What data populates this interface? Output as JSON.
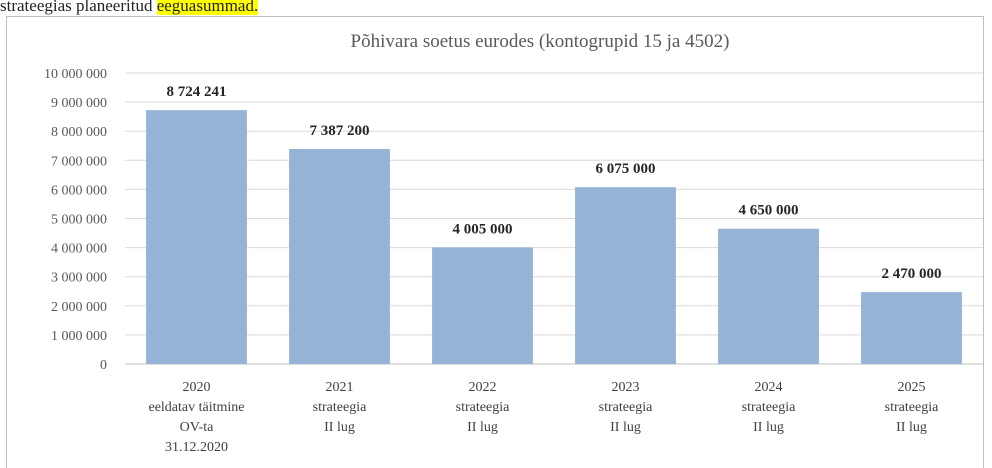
{
  "page": {
    "heading_text": "strateegias planeeritud ",
    "heading_highlight": "eeguasummad."
  },
  "chart_data": {
    "type": "bar",
    "title": "Põhivara soetus eurodes (kontogrupid 15 ja 4502)",
    "xlabel": "",
    "ylabel": "",
    "ylim": [
      0,
      10000000
    ],
    "ytick_step": 1000000,
    "ytick_labels": [
      "0",
      "1 000 000",
      "2 000 000",
      "3 000 000",
      "4 000 000",
      "5 000 000",
      "6 000 000",
      "7 000 000",
      "8 000 000",
      "9 000 000",
      "10 000 000"
    ],
    "categories": [
      [
        "2020",
        "eeldatav täitmine",
        "OV-ta",
        "31.12.2020"
      ],
      [
        "2021",
        "strateegia",
        "II lug"
      ],
      [
        "2022",
        "strateegia",
        "II lug"
      ],
      [
        "2023",
        "strateegia",
        "II lug"
      ],
      [
        "2024",
        "strateegia",
        "II lug"
      ],
      [
        "2025",
        "strateegia",
        "II lug"
      ]
    ],
    "values": [
      8724241,
      7387200,
      4005000,
      6075000,
      4650000,
      2470000
    ],
    "value_labels": [
      "8 724 241",
      "7 387 200",
      "4 005 000",
      "6 075 000",
      "4 650 000",
      "2 470 000"
    ],
    "grid": true,
    "legend": "none",
    "bar_color": "#95b3d7",
    "grid_color": "#d9d9d9"
  }
}
